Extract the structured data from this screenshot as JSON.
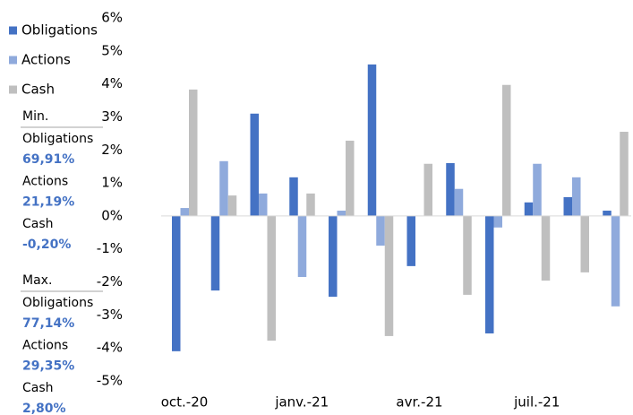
{
  "chart_data": {
    "type": "bar",
    "categories": [
      "oct.-20",
      null,
      null,
      "janv.-21",
      null,
      null,
      "avr.-21",
      null,
      null,
      "juil.-21",
      null,
      null
    ],
    "series": [
      {
        "name": "Obligations",
        "color": "#4472c4",
        "values": [
          -4.1,
          -2.26,
          3.1,
          1.17,
          -2.45,
          4.59,
          -1.52,
          1.6,
          -3.56,
          0.41,
          0.57,
          0.16
        ]
      },
      {
        "name": "Actions",
        "color": "#8faadc",
        "values": [
          0.24,
          1.66,
          0.68,
          -1.85,
          0.16,
          -0.9,
          0,
          0.82,
          -0.35,
          1.58,
          1.17,
          -2.74
        ]
      },
      {
        "name": "Cash",
        "color": "#bfbfbf",
        "values": [
          3.83,
          0.62,
          -3.78,
          0.68,
          2.28,
          -3.64,
          1.58,
          -2.39,
          3.97,
          -1.96,
          -1.71,
          2.55
        ]
      }
    ],
    "ylim": [
      -5,
      6
    ],
    "yticks": [
      {
        "value": -5,
        "label": "-5%"
      },
      {
        "value": -4,
        "label": "-4%"
      },
      {
        "value": -3,
        "label": "-3%"
      },
      {
        "value": -2,
        "label": "-2%"
      },
      {
        "value": -1,
        "label": "-1%"
      },
      {
        "value": 0,
        "label": "0%"
      },
      {
        "value": 1,
        "label": "1%"
      },
      {
        "value": 2,
        "label": "2%"
      },
      {
        "value": 3,
        "label": "3%"
      },
      {
        "value": 4,
        "label": "4%"
      },
      {
        "value": 5,
        "label": "5%"
      },
      {
        "value": 6,
        "label": "6%"
      }
    ],
    "grid": false
  },
  "stats": [
    {
      "title": "Min.",
      "items": [
        {
          "label": "Obligations",
          "value": "69,91%"
        },
        {
          "label": "Actions",
          "value": "21,19%"
        },
        {
          "label": "Cash",
          "value": "-0,20%"
        }
      ]
    },
    {
      "title": "Max.",
      "items": [
        {
          "label": "Obligations",
          "value": "77,14%"
        },
        {
          "label": "Actions",
          "value": "29,35%"
        },
        {
          "label": "Cash",
          "value": "2,80%"
        }
      ]
    }
  ]
}
